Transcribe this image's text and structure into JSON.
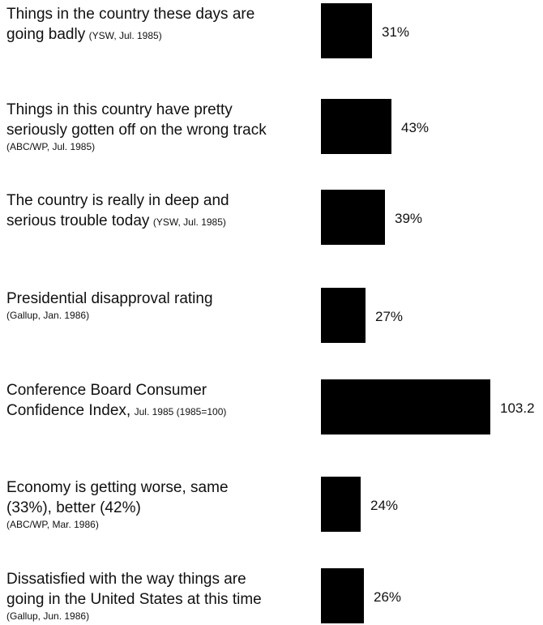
{
  "chart_data": {
    "type": "bar",
    "orientation": "horizontal",
    "colors": {
      "bar": "#000000",
      "text": "#111111",
      "background": "#ffffff"
    },
    "rows": [
      {
        "text": [
          "Things in the country these days are",
          "going badly"
        ],
        "source": "(YSW, Jul. 1985)",
        "source_inline": true,
        "value": 31,
        "value_label": "31%"
      },
      {
        "text": [
          "Things in this country have pretty",
          "seriously gotten off on the wrong track"
        ],
        "source": "(ABC/WP, Jul. 1985)",
        "source_inline": false,
        "value": 43,
        "value_label": "43%"
      },
      {
        "text": [
          "The country is really in deep and",
          "serious trouble today"
        ],
        "source": "(YSW, Jul. 1985)",
        "source_inline": true,
        "value": 39,
        "value_label": "39%"
      },
      {
        "text": [
          "Presidential disapproval rating"
        ],
        "source": "(Gallup, Jan. 1986)",
        "source_inline": false,
        "value": 27,
        "value_label": "27%"
      },
      {
        "text": [
          "Conference Board Consumer",
          "Confidence Index,"
        ],
        "source": "Jul. 1985 (1985=100)",
        "source_inline": true,
        "value": 103.2,
        "value_label": "103.2"
      },
      {
        "text": [
          "Economy is getting worse, same",
          "(33%), better (42%)"
        ],
        "source": "(ABC/WP, Mar. 1986)",
        "source_inline": false,
        "value": 24,
        "value_label": "24%"
      },
      {
        "text": [
          "Dissatisfied with the way things are",
          "going in the United States at this time"
        ],
        "source": "(Gallup, Jun. 1986)",
        "source_inline": false,
        "value": 26,
        "value_label": "26%"
      }
    ]
  }
}
